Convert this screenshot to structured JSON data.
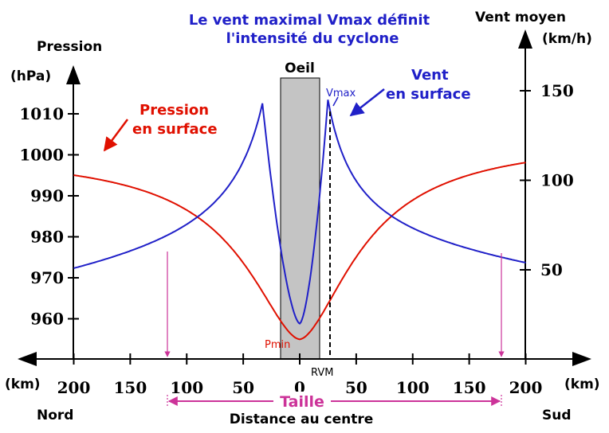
{
  "title": {
    "line1": "Le vent maximal Vmax définit",
    "line2": "l'intensité du cyclone",
    "color": "#2020c8"
  },
  "left_axis": {
    "label_line1": "Pression",
    "label_line2": "(hPa)",
    "ticks": [
      {
        "value": 1010,
        "label": "1010"
      },
      {
        "value": 1000,
        "label": "1000"
      },
      {
        "value": 990,
        "label": "990"
      },
      {
        "value": 980,
        "label": "980"
      },
      {
        "value": 970,
        "label": "970"
      },
      {
        "value": 960,
        "label": "960"
      }
    ]
  },
  "right_axis": {
    "label_line1": "Vent moyen",
    "label_line2": "(km/h)",
    "ticks": [
      {
        "value": 150,
        "label": "150"
      },
      {
        "value": 100,
        "label": "100"
      },
      {
        "value": 50,
        "label": "50"
      }
    ]
  },
  "x_axis": {
    "unit_left": "(km)",
    "unit_right": "(km)",
    "left_end": "Nord",
    "right_end": "Sud",
    "center_label": "Distance au centre",
    "ticks": [
      {
        "value": -200,
        "label": "200"
      },
      {
        "value": -150,
        "label": "150"
      },
      {
        "value": -100,
        "label": "100"
      },
      {
        "value": -50,
        "label": "50"
      },
      {
        "value": 0,
        "label": "0"
      },
      {
        "value": 50,
        "label": "50"
      },
      {
        "value": 100,
        "label": "100"
      },
      {
        "value": 150,
        "label": "150"
      },
      {
        "value": 200,
        "label": "200"
      }
    ]
  },
  "annotations": {
    "eye": "Oeil",
    "vmax": "Vmax",
    "pmin": "Pmin",
    "rvm": "RVM",
    "size": "Taille",
    "pressure_line1": "Pression",
    "pressure_line2": "en surface",
    "wind_line1": "Vent",
    "wind_line2": "en surface"
  },
  "colors": {
    "pressure": "#e01000",
    "wind": "#2020c8",
    "size": "#cc3399",
    "eye_fill": "#c4c4c4"
  }
}
